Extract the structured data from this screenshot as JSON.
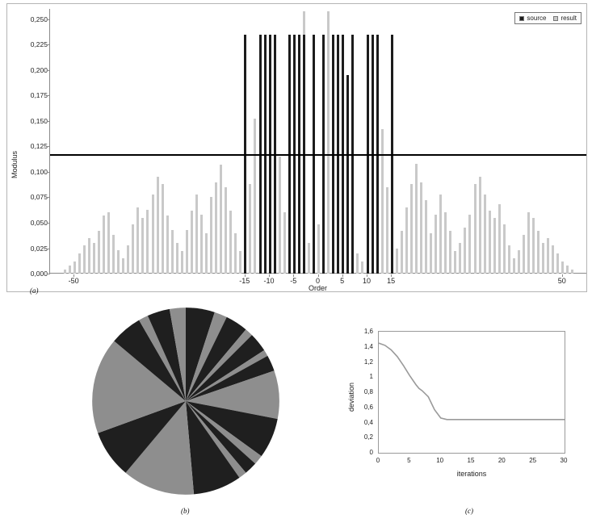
{
  "figure": {
    "panel_a_label": "(a)",
    "panel_b_label": "(b)",
    "panel_c_label": "(c)"
  },
  "chart_data": [
    {
      "id": "modulus-bar-chart",
      "type": "bar",
      "title": "",
      "xlabel": "Order",
      "ylabel": "Modulus",
      "xlim": [
        -55,
        55
      ],
      "ylim": [
        0,
        0.26
      ],
      "x_ticks": [
        -50,
        -15,
        -10,
        -5,
        0,
        5,
        10,
        15,
        50
      ],
      "y_ticks": [
        "0,000",
        "0,025",
        "0,050",
        "0,075",
        "0,100",
        "0,125",
        "0,150",
        "0,175",
        "0,200",
        "0,225",
        "0,250"
      ],
      "y_tick_values": [
        0,
        0.025,
        0.05,
        0.075,
        0.1,
        0.125,
        0.15,
        0.175,
        0.2,
        0.225,
        0.25
      ],
      "threshold_line": 0.117,
      "legend_position": "top-right",
      "grid": false,
      "legend": [
        {
          "label": "source",
          "color": "#1c1c1c"
        },
        {
          "label": "result",
          "color": "#c9c9c9"
        }
      ],
      "series": [
        {
          "name": "source",
          "color": "#1c1c1c",
          "points": [
            [
              -15,
              0.235
            ],
            [
              -12,
              0.235
            ],
            [
              -11,
              0.235
            ],
            [
              -10,
              0.235
            ],
            [
              -9,
              0.235
            ],
            [
              -6,
              0.235
            ],
            [
              -5,
              0.235
            ],
            [
              -4,
              0.235
            ],
            [
              -3,
              0.235
            ],
            [
              -1,
              0.235
            ],
            [
              1,
              0.235
            ],
            [
              3,
              0.235
            ],
            [
              4,
              0.235
            ],
            [
              5,
              0.235
            ],
            [
              6,
              0.195
            ],
            [
              7,
              0.235
            ],
            [
              10,
              0.235
            ],
            [
              11,
              0.235
            ],
            [
              12,
              0.235
            ],
            [
              15,
              0.235
            ]
          ]
        },
        {
          "name": "result",
          "color": "#c9c9c9",
          "points": [
            [
              -52,
              0.004
            ],
            [
              -51,
              0.008
            ],
            [
              -50,
              0.012
            ],
            [
              -49,
              0.02
            ],
            [
              -48,
              0.028
            ],
            [
              -47,
              0.035
            ],
            [
              -46,
              0.03
            ],
            [
              -45,
              0.042
            ],
            [
              -44,
              0.057
            ],
            [
              -43,
              0.06
            ],
            [
              -42,
              0.038
            ],
            [
              -41,
              0.023
            ],
            [
              -40,
              0.015
            ],
            [
              -39,
              0.028
            ],
            [
              -38,
              0.048
            ],
            [
              -37,
              0.065
            ],
            [
              -36,
              0.055
            ],
            [
              -35,
              0.063
            ],
            [
              -34,
              0.078
            ],
            [
              -33,
              0.095
            ],
            [
              -32,
              0.088
            ],
            [
              -31,
              0.057
            ],
            [
              -30,
              0.043
            ],
            [
              -29,
              0.03
            ],
            [
              -28,
              0.022
            ],
            [
              -27,
              0.043
            ],
            [
              -26,
              0.062
            ],
            [
              -25,
              0.078
            ],
            [
              -24,
              0.058
            ],
            [
              -23,
              0.04
            ],
            [
              -22,
              0.075
            ],
            [
              -21,
              0.09
            ],
            [
              -20,
              0.107
            ],
            [
              -19,
              0.085
            ],
            [
              -18,
              0.062
            ],
            [
              -17,
              0.04
            ],
            [
              -16,
              0.022
            ],
            [
              -15,
              0.012
            ],
            [
              -14,
              0.088
            ],
            [
              -13,
              0.152
            ],
            [
              -12,
              0.01
            ],
            [
              -11,
              0.023
            ],
            [
              -10,
              0.008
            ],
            [
              -9,
              0.02
            ],
            [
              -8,
              0.115
            ],
            [
              -7,
              0.06
            ],
            [
              -6,
              0.018
            ],
            [
              -5,
              0.015
            ],
            [
              -4,
              0.115
            ],
            [
              -3,
              0.258
            ],
            [
              -2,
              0.03
            ],
            [
              -1,
              0.012
            ],
            [
              0,
              0.048
            ],
            [
              1,
              0.025
            ],
            [
              2,
              0.258
            ],
            [
              3,
              0.195
            ],
            [
              4,
              0.03
            ],
            [
              5,
              0.018
            ],
            [
              6,
              0.115
            ],
            [
              7,
              0.06
            ],
            [
              8,
              0.02
            ],
            [
              9,
              0.012
            ],
            [
              10,
              0.008
            ],
            [
              11,
              0.022
            ],
            [
              12,
              0.01
            ],
            [
              13,
              0.142
            ],
            [
              14,
              0.085
            ],
            [
              15,
              0.012
            ],
            [
              16,
              0.025
            ],
            [
              17,
              0.042
            ],
            [
              18,
              0.065
            ],
            [
              19,
              0.088
            ],
            [
              20,
              0.108
            ],
            [
              21,
              0.09
            ],
            [
              22,
              0.072
            ],
            [
              23,
              0.04
            ],
            [
              24,
              0.058
            ],
            [
              25,
              0.078
            ],
            [
              26,
              0.06
            ],
            [
              27,
              0.042
            ],
            [
              28,
              0.022
            ],
            [
              29,
              0.03
            ],
            [
              30,
              0.045
            ],
            [
              31,
              0.058
            ],
            [
              32,
              0.088
            ],
            [
              33,
              0.095
            ],
            [
              34,
              0.078
            ],
            [
              35,
              0.062
            ],
            [
              36,
              0.055
            ],
            [
              37,
              0.068
            ],
            [
              38,
              0.048
            ],
            [
              39,
              0.028
            ],
            [
              40,
              0.015
            ],
            [
              41,
              0.023
            ],
            [
              42,
              0.038
            ],
            [
              43,
              0.06
            ],
            [
              44,
              0.055
            ],
            [
              45,
              0.042
            ],
            [
              46,
              0.03
            ],
            [
              47,
              0.035
            ],
            [
              48,
              0.028
            ],
            [
              49,
              0.02
            ],
            [
              50,
              0.012
            ],
            [
              51,
              0.008
            ],
            [
              52,
              0.004
            ]
          ]
        }
      ]
    },
    {
      "id": "pie-chart",
      "type": "pie",
      "title": "",
      "colors": {
        "dark": "#1f1f1f",
        "gray": "#8e8e8e"
      },
      "slices": [
        {
          "color": "dark",
          "value": 18
        },
        {
          "color": "gray",
          "value": 8
        },
        {
          "color": "dark",
          "value": 14
        },
        {
          "color": "gray",
          "value": 5
        },
        {
          "color": "dark",
          "value": 12
        },
        {
          "color": "gray",
          "value": 4
        },
        {
          "color": "dark",
          "value": 10
        },
        {
          "color": "gray",
          "value": 30
        },
        {
          "color": "dark",
          "value": 25
        },
        {
          "color": "gray",
          "value": 6
        },
        {
          "color": "dark",
          "value": 8
        },
        {
          "color": "gray",
          "value": 5
        },
        {
          "color": "dark",
          "value": 30
        },
        {
          "color": "gray",
          "value": 45
        },
        {
          "color": "dark",
          "value": 30
        },
        {
          "color": "gray",
          "value": 60
        },
        {
          "color": "dark",
          "value": 20
        },
        {
          "color": "gray",
          "value": 6
        },
        {
          "color": "dark",
          "value": 14
        },
        {
          "color": "gray",
          "value": 10
        }
      ]
    },
    {
      "id": "deviation-line-chart",
      "type": "line",
      "title": "",
      "xlabel": "iterations",
      "ylabel": "deviation",
      "xlim": [
        0,
        30
      ],
      "ylim": [
        0,
        1.6
      ],
      "x_ticks": [
        0,
        5,
        10,
        15,
        20,
        25,
        30
      ],
      "y_ticks": [
        "0",
        "0,2",
        "0,4",
        "0,6",
        "0,8",
        "1",
        "1,2",
        "1,4",
        "1,6"
      ],
      "y_tick_values": [
        0,
        0.2,
        0.4,
        0.6,
        0.8,
        1.0,
        1.2,
        1.4,
        1.6
      ],
      "line_color": "#9a9a9a",
      "grid": false,
      "points": [
        [
          0,
          1.45
        ],
        [
          1,
          1.42
        ],
        [
          2,
          1.36
        ],
        [
          3,
          1.27
        ],
        [
          4,
          1.15
        ],
        [
          5,
          1.02
        ],
        [
          6,
          0.9
        ],
        [
          6.5,
          0.85
        ],
        [
          7,
          0.82
        ],
        [
          8,
          0.74
        ],
        [
          9,
          0.57
        ],
        [
          10,
          0.46
        ],
        [
          11,
          0.44
        ],
        [
          12,
          0.44
        ],
        [
          14,
          0.44
        ],
        [
          16,
          0.44
        ],
        [
          18,
          0.44
        ],
        [
          20,
          0.44
        ],
        [
          22,
          0.44
        ],
        [
          24,
          0.44
        ],
        [
          26,
          0.44
        ],
        [
          28,
          0.44
        ],
        [
          30,
          0.44
        ]
      ]
    }
  ]
}
